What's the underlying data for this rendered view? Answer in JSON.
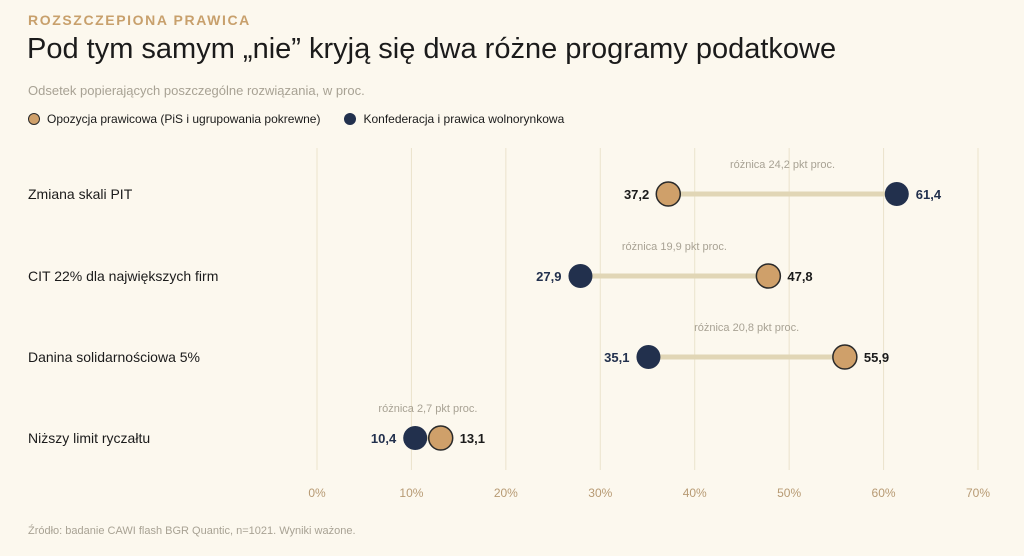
{
  "header": {
    "kicker": "ROZSZCZEPIONA PRAWICA",
    "title": "Pod tym samym „nie” kryją się dwa różne programy podatkowe",
    "subtitle": "Odsetek popierających poszczególne rozwiązania, w proc."
  },
  "legend": {
    "opozycja": "Opozycja prawicowa (PiS i ugrupowania pokrewne)",
    "konfederacja": "Konfederacja i prawica wolnorynkowa"
  },
  "colors": {
    "opozycja": "#cfa06a",
    "konfederacja": "#22304d",
    "connector": "#e1d6b6",
    "grid": "#ebe3cc",
    "kicker": "#c8a06c"
  },
  "chart_data": {
    "type": "dumbbell",
    "xlim": [
      0,
      70
    ],
    "xticks": [
      0,
      10,
      20,
      30,
      40,
      50,
      60,
      70
    ],
    "tick_labels": [
      "0%",
      "10%",
      "20%",
      "30%",
      "40%",
      "50%",
      "60%",
      "70%"
    ],
    "series": [
      {
        "name": "Opozycja prawicowa (PiS i ugrupowania pokrewne)",
        "key": "opozycja"
      },
      {
        "name": "Konfederacja i prawica wolnorynkowa",
        "key": "konfederacja"
      }
    ],
    "rows": [
      {
        "category": "Zmiana skali PIT",
        "opozycja": 37.2,
        "konfederacja": 61.4,
        "opozycja_label": "37,2",
        "konfederacja_label": "61,4",
        "diff_label": "różnica 24,2 pkt proc."
      },
      {
        "category": "CIT 22% dla największych firm",
        "opozycja": 47.8,
        "konfederacja": 27.9,
        "opozycja_label": "47,8",
        "konfederacja_label": "27,9",
        "diff_label": "różnica 19,9 pkt proc."
      },
      {
        "category": "Danina solidarnościowa 5%",
        "opozycja": 55.9,
        "konfederacja": 35.1,
        "opozycja_label": "55,9",
        "konfederacja_label": "35,1",
        "diff_label": "różnica 20,8 pkt proc."
      },
      {
        "category": "Niższy limit ryczałtu",
        "opozycja": 13.1,
        "konfederacja": 10.4,
        "opozycja_label": "13,1",
        "konfederacja_label": "10,4",
        "diff_label": "różnica 2,7 pkt proc."
      }
    ]
  },
  "footer": {
    "source": "Źródło: badanie CAWI flash BGR Quantic, n=1021. Wyniki ważone."
  }
}
